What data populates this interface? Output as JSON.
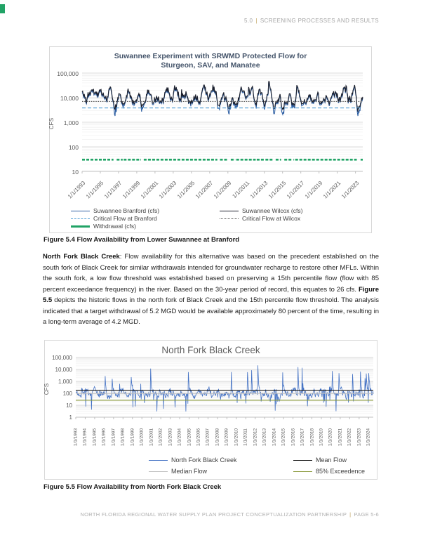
{
  "page": {
    "header": {
      "section": "5.0",
      "separator": "|",
      "title": "SCREENING PROCESSES AND RESULTS"
    },
    "footer": {
      "text": "NORTH FLORIDA REGIONAL WATER SUPPLY PLAN PROJECT CONCEPTUALIZATION PARTNERSHIP",
      "separator": "|",
      "page_label": "PAGE 5-6"
    }
  },
  "figure_5_4": {
    "caption": "Figure 5.4 Flow Availability from Lower Suwannee at Branford"
  },
  "figure_5_5": {
    "caption": "Figure 5.5 Flow Availability from North Fork Black Creek"
  },
  "paragraph": {
    "lead_bold": "North Fork Black Creek",
    "text_1": ": Flow availability for this alternative was based on the precedent established on the south fork of Black Creek for similar withdrawals intended for groundwater recharge to restore other MFLs. Within the south fork, a low flow threshold was established based on preserving a 15th percentile flow (flow with 85 percent exceedance frequency) in the river. Based on the 30-year period of record, this equates to 26 cfs. ",
    "bold_2": "Figure 5.5",
    "text_2": " depicts the historic flows in the north fork of Black Creek and the 15th percentile flow threshold. The analysis indicated that a target withdrawal of 5.2 MGD would be available approximately 80 percent of the time, resulting in a long-term average of 4.2 MGD."
  },
  "chart_data": [
    {
      "id": "figure-5-4",
      "type": "line",
      "title": "Suwannee Experiment with SRWMD Protected Flow for Sturgeon, SAV, and Manatee",
      "title_lines": [
        "Suwannee Experiment with SRWMD Protected Flow for",
        "Sturgeon, SAV, and Manatee"
      ],
      "ylabel": "CFS",
      "y_scale": "log",
      "ylim": [
        10,
        100000
      ],
      "y_ticks": [
        "100,000",
        "10,000",
        "1,000",
        "100",
        "10"
      ],
      "x_ticks": [
        "1/1/1993",
        "1/1/1995",
        "1/1/1997",
        "1/1/1999",
        "1/1/2001",
        "1/1/2003",
        "1/1/2005",
        "1/1/2007",
        "1/1/2009",
        "1/1/2011",
        "1/1/2013",
        "1/1/2015",
        "1/1/2017",
        "1/1/2019",
        "1/1/2021",
        "1/1/2023"
      ],
      "grid": "log-minor",
      "legend_position": "bottom",
      "series": [
        {
          "name": "Suwannee Branford (cfs)",
          "color": "#2E5FA3",
          "style": "solid",
          "kind": "flow-paired",
          "approx_median_cfs": 8000,
          "approx_range_cfs": [
            1800,
            40000
          ]
        },
        {
          "name": "Suwannee Wilcox (cfs)",
          "color": "#1B1F2C",
          "style": "solid",
          "kind": "flow",
          "approx_median_cfs": 9500,
          "approx_range_cfs": [
            2500,
            45000
          ]
        },
        {
          "name": "Critical Flow at Branford",
          "color": "#56A2D8",
          "style": "dashed",
          "kind": "constant",
          "value_cfs": 3800
        },
        {
          "name": "Critical Flow at Wilcox",
          "color": "#4D4D4D",
          "style": "dotted",
          "kind": "constant",
          "value_cfs": 7000
        },
        {
          "name": "Withdrawal (cfs)",
          "color": "#21A366",
          "style": "thick-dashed",
          "kind": "intermittent",
          "value_cfs": 30
        }
      ]
    },
    {
      "id": "figure-5-5",
      "type": "line",
      "title": "North Fork Black Creek",
      "ylabel": "CFS",
      "y_scale": "log",
      "ylim": [
        1,
        100000
      ],
      "y_ticks": [
        "100,000",
        "10,000",
        "1,000",
        "100",
        "10",
        "1"
      ],
      "x_ticks": [
        "1/1/1993",
        "1/1/1994",
        "1/1/1995",
        "1/1/1996",
        "1/1/1997",
        "1/1/1998",
        "1/1/1999",
        "1/1/2000",
        "1/1/2001",
        "1/1/2002",
        "1/1/2003",
        "1/1/2004",
        "1/1/2005",
        "1/1/2006",
        "1/1/2007",
        "1/1/2008",
        "1/1/2009",
        "1/1/2010",
        "1/1/2011",
        "1/1/2012",
        "1/1/2013",
        "1/1/2014",
        "1/1/2015",
        "1/1/2016",
        "1/1/2017",
        "1/1/2018",
        "1/1/2019",
        "1/1/2020",
        "1/1/2021",
        "1/1/2022",
        "1/1/2023",
        "1/1/2024"
      ],
      "grid": "log-minor",
      "legend_position": "bottom",
      "series": [
        {
          "name": "North Fork Black Creek",
          "color": "#4472C4",
          "style": "solid",
          "kind": "flow",
          "approx_median_cfs": 95,
          "approx_range_cfs": [
            3,
            22000
          ]
        },
        {
          "name": "Mean Flow",
          "color": "#111111",
          "style": "solid",
          "kind": "constant",
          "value_cfs": 170
        },
        {
          "name": "Median Flow",
          "color": "#BFBFBF",
          "style": "solid",
          "kind": "constant",
          "value_cfs": 100
        },
        {
          "name": "85% Exceedence",
          "color": "#8A9A3B",
          "style": "solid",
          "kind": "constant",
          "value_cfs": 26
        }
      ]
    }
  ]
}
